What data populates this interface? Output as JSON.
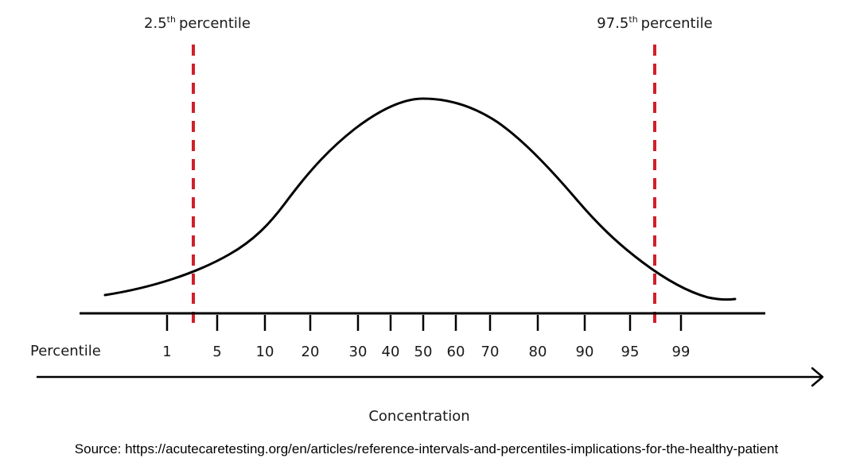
{
  "diagram": {
    "left_marker": {
      "number": "2.5",
      "superscript": "th",
      "word": "percentile"
    },
    "right_marker": {
      "number": "97.5",
      "superscript": "th",
      "word": "percentile"
    },
    "percentile_row_label": "Percentile",
    "tick_labels": [
      "1",
      "5",
      "10",
      "20",
      "30",
      "40",
      "50",
      "60",
      "70",
      "80",
      "90",
      "95",
      "99"
    ],
    "axis_label": "Concentration",
    "marker_color": "#d0202a",
    "curve_color": "#000000"
  },
  "source_text": "Source: https://acutecaretesting.org/en/articles/reference-intervals-and-percentiles-implications-for-the-healthy-patient"
}
